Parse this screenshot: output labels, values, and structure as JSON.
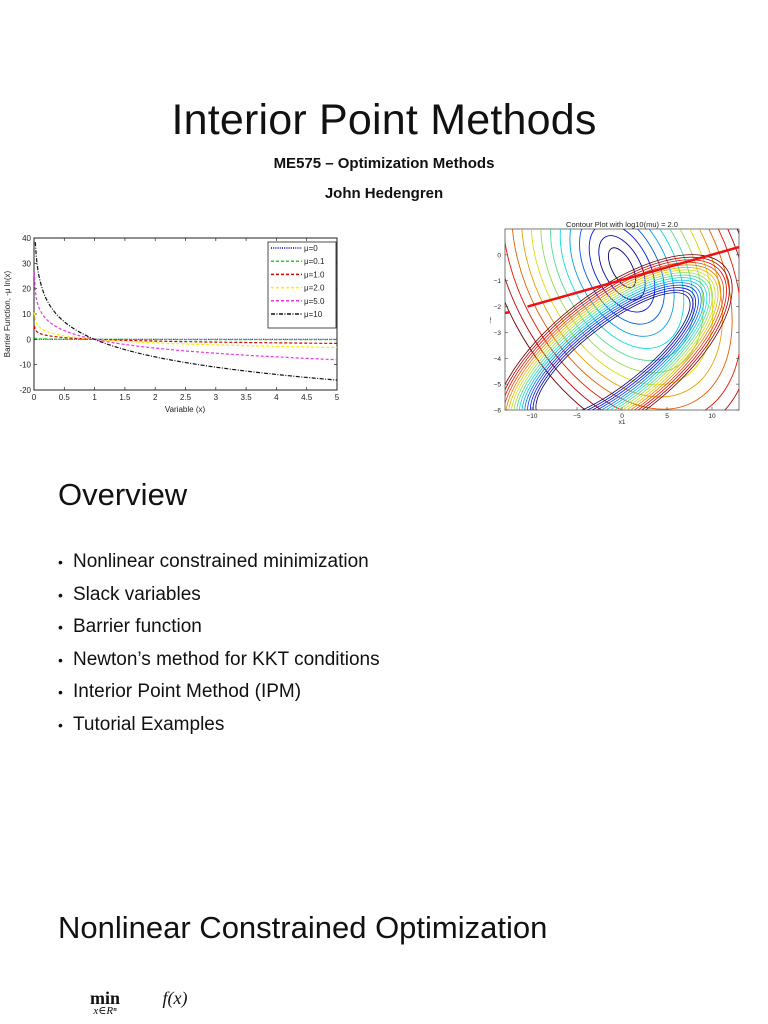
{
  "slide1": {
    "title": "Interior Point Methods",
    "course": "ME575 – Optimization Methods",
    "author": "John Hedengren"
  },
  "slide2": {
    "heading": "Overview",
    "bullets": [
      "Nonlinear constrained minimization",
      "Slack variables",
      "Barrier function",
      "Newton’s method for KKT conditions",
      "Interior Point Method (IPM)",
      "Tutorial Examples"
    ],
    "bullet_glyph": "•"
  },
  "slide3": {
    "heading": "Nonlinear Constrained Optimization",
    "math": {
      "operator": "min",
      "subscript": "x∈Rⁿ",
      "objective": "f(x)"
    }
  },
  "chart_data": [
    {
      "type": "line",
      "title": "",
      "xlabel": "Variable (x)",
      "ylabel": "Barrier Function, -μ ln(x)",
      "xlim": [
        0,
        5
      ],
      "ylim": [
        -20,
        40
      ],
      "xticks": [
        "0",
        "0.5",
        "1",
        "1.5",
        "2",
        "2.5",
        "3",
        "3.5",
        "4",
        "4.5",
        "5"
      ],
      "yticks": [
        "40",
        "30",
        "20",
        "10",
        "0",
        "-10",
        "-20"
      ],
      "grid": false,
      "legend_position": "upper right",
      "x": [
        0.01,
        0.1,
        0.25,
        0.5,
        1,
        1.5,
        2,
        3,
        4,
        5
      ],
      "series": [
        {
          "name": "μ=0",
          "color": "#0000cc",
          "style": "dotted",
          "values": [
            0,
            0,
            0,
            0,
            0,
            0,
            0,
            0,
            0,
            0
          ]
        },
        {
          "name": "μ=0.1",
          "color": "#22cc22",
          "style": "dashed",
          "values": [
            0.46,
            0.23,
            0.14,
            0.07,
            0,
            -0.04,
            -0.07,
            -0.11,
            -0.14,
            -0.16
          ]
        },
        {
          "name": "μ=1.0",
          "color": "#dd0000",
          "style": "dashed",
          "values": [
            4.6,
            2.3,
            1.39,
            0.69,
            0,
            -0.41,
            -0.69,
            -1.1,
            -1.39,
            -1.61
          ]
        },
        {
          "name": "μ=2.0",
          "color": "#ffee00",
          "style": "dashed",
          "values": [
            9.2,
            4.6,
            2.77,
            1.39,
            0,
            -0.81,
            -1.39,
            -2.2,
            -2.77,
            -3.22
          ]
        },
        {
          "name": "μ=5.0",
          "color": "#ee33ee",
          "style": "dashed",
          "values": [
            23.0,
            11.5,
            6.93,
            3.47,
            0,
            -2.03,
            -3.47,
            -5.49,
            -6.93,
            -8.05
          ]
        },
        {
          "name": "μ=10",
          "color": "#111111",
          "style": "dash-dot",
          "values": [
            46.1,
            23.0,
            13.9,
            6.93,
            0,
            -4.05,
            -6.93,
            -10.99,
            -13.86,
            -16.09
          ]
        }
      ]
    },
    {
      "type": "contour",
      "title": "Contour Plot with log10(mu) = 2.0",
      "xlabel": "x1",
      "ylabel": "x2",
      "xlim": [
        -13,
        13
      ],
      "ylim": [
        -6,
        1
      ],
      "xticks": [
        "−10",
        "−5",
        "0",
        "5",
        "10"
      ],
      "yticks": [
        "0",
        "−1",
        "−2",
        "−3",
        "−4",
        "−5",
        "−6"
      ],
      "contour_labels": [
        "1.000",
        "3.000",
        "15.000",
        "20.000",
        "40.000",
        "50.000",
        "60.000",
        "80.000",
        "90.000",
        "100.000"
      ],
      "constraint_line": {
        "color": "#ee1111",
        "from": [
          -10.5,
          -2.0
        ],
        "to": [
          13,
          0.3
        ]
      }
    }
  ]
}
